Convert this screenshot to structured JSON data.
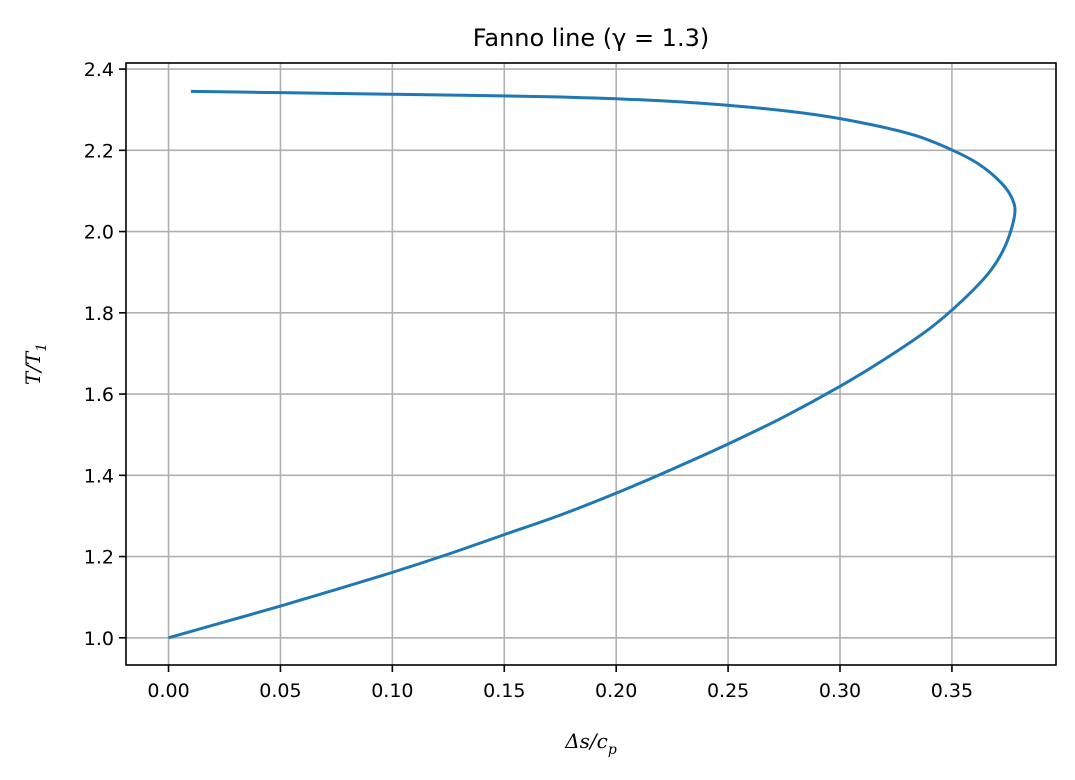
{
  "chart_data": {
    "type": "line",
    "title": "Fanno line (γ = 1.3)",
    "xlabel": "Δs/c",
    "xlabel_sub": "p",
    "ylabel": "T/T",
    "ylabel_sub": "1",
    "xlim": [
      -0.019,
      0.3965
    ],
    "ylim": [
      0.933,
      2.415
    ],
    "xticks": [
      0.0,
      0.05,
      0.1,
      0.15,
      0.2,
      0.25,
      0.3,
      0.35
    ],
    "xtick_labels": [
      "0.00",
      "0.05",
      "0.10",
      "0.15",
      "0.20",
      "0.25",
      "0.30",
      "0.35"
    ],
    "yticks": [
      1.0,
      1.2,
      1.4,
      1.6,
      1.8,
      2.0,
      2.2,
      2.4
    ],
    "ytick_labels": [
      "1.0",
      "1.2",
      "1.4",
      "1.6",
      "1.8",
      "2.0",
      "2.2",
      "2.4"
    ],
    "grid": true,
    "series": [
      {
        "color": "#1f77b4",
        "x": [
          0.0,
          0.025,
          0.05,
          0.075,
          0.1,
          0.125,
          0.15,
          0.175,
          0.2,
          0.225,
          0.25,
          0.275,
          0.3,
          0.32,
          0.34,
          0.355,
          0.367,
          0.374,
          0.378,
          0.377,
          0.372,
          0.362,
          0.35,
          0.334,
          0.315,
          0.29,
          0.26,
          0.22,
          0.17,
          0.1,
          0.05,
          0.01
        ],
        "y": [
          1.0,
          1.039,
          1.078,
          1.119,
          1.161,
          1.206,
          1.254,
          1.302,
          1.356,
          1.415,
          1.477,
          1.544,
          1.619,
          1.686,
          1.761,
          1.832,
          1.902,
          1.967,
          2.04,
          2.08,
          2.12,
          2.166,
          2.201,
          2.236,
          2.262,
          2.287,
          2.306,
          2.322,
          2.332,
          2.338,
          2.342,
          2.345
        ]
      }
    ]
  }
}
